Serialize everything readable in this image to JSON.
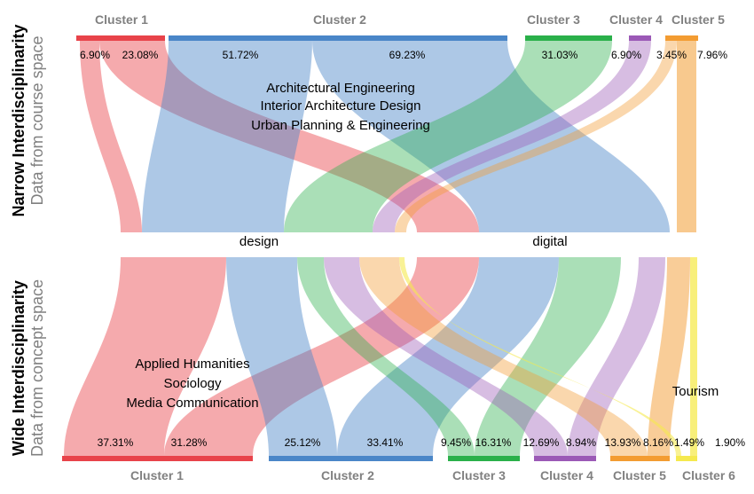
{
  "colors": {
    "c1": "#e8434a",
    "c2": "#4a86c8",
    "c3": "#2ab04a",
    "c4": "#9b59b6",
    "c5": "#f39c32",
    "c6": "#f5e94e"
  },
  "narrow": {
    "title": "Narrow Interdisciplinarity",
    "subtitle": "Data from course space",
    "clusters": [
      {
        "label": "Cluster 1",
        "color": "c1",
        "percents": [
          "6.90%",
          "23.08%"
        ]
      },
      {
        "label": "Cluster 2",
        "color": "c2",
        "percents": [
          "51.72%",
          "69.23%"
        ]
      },
      {
        "label": "Cluster 3",
        "color": "c3",
        "percents": [
          "31.03%"
        ]
      },
      {
        "label": "Cluster 4",
        "color": "c4",
        "percents": [
          "6.90%"
        ]
      },
      {
        "label": "Cluster 5",
        "color": "c5",
        "percents": [
          "3.45%",
          "7.96%"
        ]
      }
    ],
    "terms": [
      "design",
      "digital"
    ],
    "annotation": [
      "Architectural Engineering",
      "Interior Architecture Design",
      "Urban Planning & Engineering"
    ]
  },
  "wide": {
    "title": "Wide Interdisciplinarity",
    "subtitle": "Data from concept space",
    "clusters": [
      {
        "label": "Cluster 1",
        "color": "c1",
        "percents": [
          "37.31%",
          "31.28%"
        ]
      },
      {
        "label": "Cluster 2",
        "color": "c2",
        "percents": [
          "25.12%",
          "33.41%"
        ]
      },
      {
        "label": "Cluster 3",
        "color": "c3",
        "percents": [
          "9.45%",
          "16.31%"
        ]
      },
      {
        "label": "Cluster 4",
        "color": "c4",
        "percents": [
          "12.69%",
          "8.94%"
        ]
      },
      {
        "label": "Cluster 5",
        "color": "c5",
        "percents": [
          "13.93%",
          "8.16%"
        ]
      },
      {
        "label": "Cluster 6",
        "color": "c6",
        "percents": [
          "1.49%",
          "1.90%"
        ]
      }
    ],
    "annotation": [
      "Applied Humanities",
      "Sociology",
      "Media Communication"
    ],
    "annotation2": "Tourism"
  }
}
